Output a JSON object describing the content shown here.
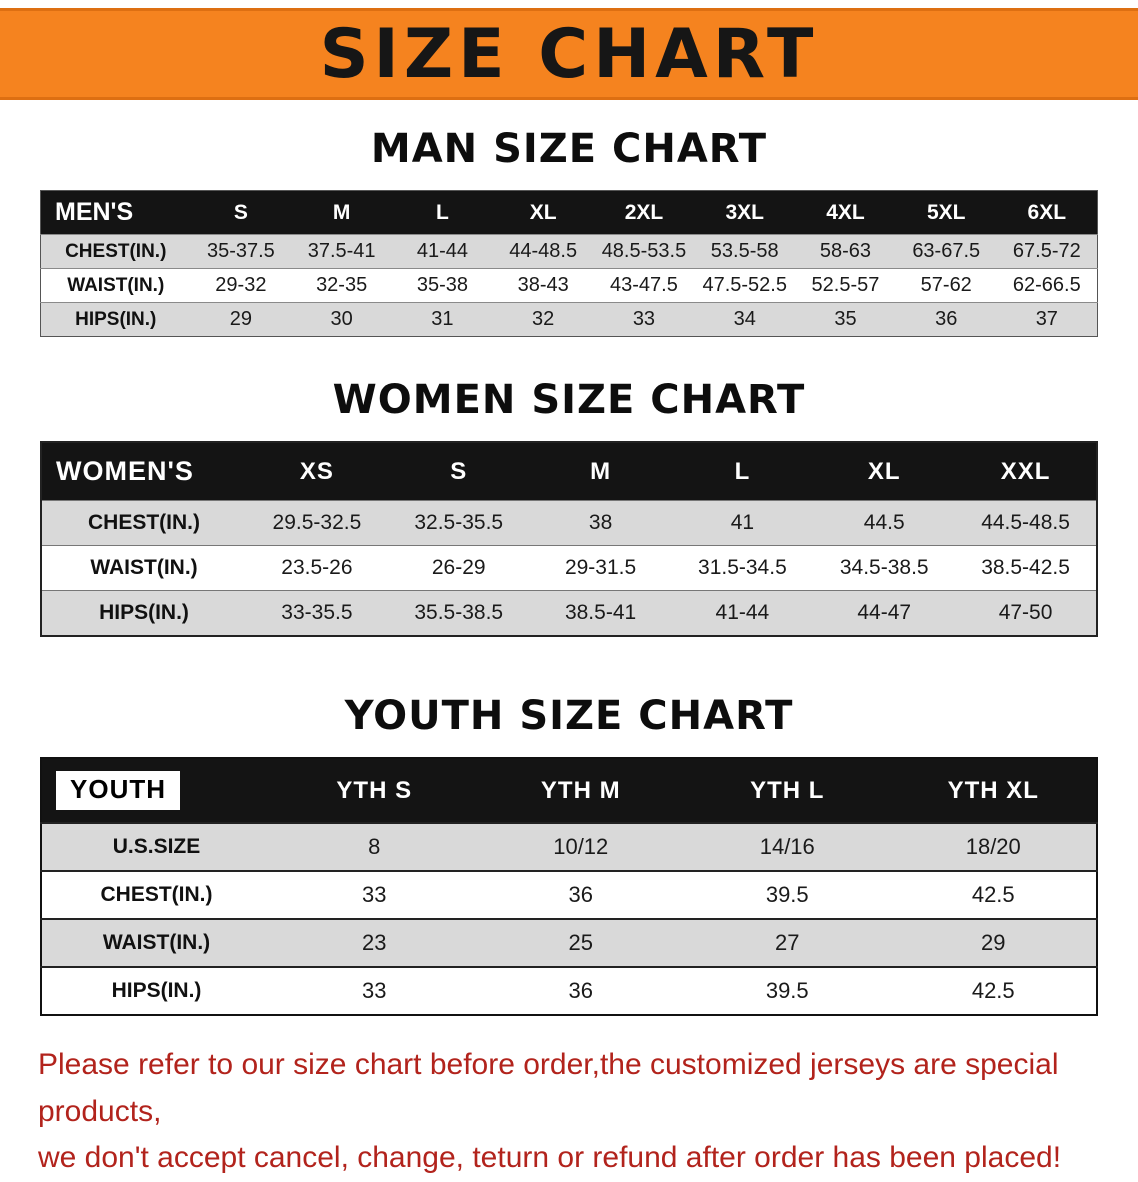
{
  "banner": {
    "title": "SIZE CHART",
    "background_color": "#F5831F",
    "text_color": "#161616"
  },
  "sections": [
    {
      "heading": "MAN SIZE CHART",
      "header_label": "MEN'S",
      "label_style": "plain",
      "columns": [
        "S",
        "M",
        "L",
        "XL",
        "2XL",
        "3XL",
        "4XL",
        "5XL",
        "6XL"
      ],
      "rows": [
        {
          "label": "CHEST(IN.)",
          "values": [
            "35-37.5",
            "37.5-41",
            "41-44",
            "44-48.5",
            "48.5-53.5",
            "53.5-58",
            "58-63",
            "63-67.5",
            "67.5-72"
          ]
        },
        {
          "label": "WAIST(IN.)",
          "values": [
            "29-32",
            "32-35",
            "35-38",
            "38-43",
            "43-47.5",
            "47.5-52.5",
            "52.5-57",
            "57-62",
            "62-66.5"
          ]
        },
        {
          "label": "HIPS(IN.)",
          "values": [
            "29",
            "30",
            "31",
            "32",
            "33",
            "34",
            "35",
            "36",
            "37"
          ]
        }
      ]
    },
    {
      "heading": "WOMEN SIZE CHART",
      "header_label": "WOMEN'S",
      "label_style": "plain",
      "columns": [
        "XS",
        "S",
        "M",
        "L",
        "XL",
        "XXL"
      ],
      "rows": [
        {
          "label": "CHEST(IN.)",
          "values": [
            "29.5-32.5",
            "32.5-35.5",
            "38",
            "41",
            "44.5",
            "44.5-48.5"
          ]
        },
        {
          "label": "WAIST(IN.)",
          "values": [
            "23.5-26",
            "26-29",
            "29-31.5",
            "31.5-34.5",
            "34.5-38.5",
            "38.5-42.5"
          ]
        },
        {
          "label": "HIPS(IN.)",
          "values": [
            "33-35.5",
            "35.5-38.5",
            "38.5-41",
            "41-44",
            "44-47",
            "47-50"
          ]
        }
      ]
    },
    {
      "heading": "YOUTH SIZE CHART",
      "header_label": "YOUTH",
      "label_style": "boxed",
      "columns": [
        "YTH S",
        "YTH M",
        "YTH L",
        "YTH XL"
      ],
      "rows": [
        {
          "label": "U.S.SIZE",
          "values": [
            "8",
            "10/12",
            "14/16",
            "18/20"
          ]
        },
        {
          "label": "CHEST(IN.)",
          "values": [
            "33",
            "36",
            "39.5",
            "42.5"
          ]
        },
        {
          "label": "WAIST(IN.)",
          "values": [
            "23",
            "25",
            "27",
            "29"
          ]
        },
        {
          "label": "HIPS(IN.)",
          "values": [
            "33",
            "36",
            "39.5",
            "42.5"
          ]
        }
      ]
    }
  ],
  "disclaimer": {
    "lines": [
      "Please refer to our size chart before order,the customized jerseys are special products,",
      "we don't accept cancel, change, teturn or refund after order has been placed!"
    ],
    "text_color": "#B2231C"
  },
  "colors": {
    "header_bg": "#141414",
    "row_alt_bg": "#D9D9D9",
    "row_bg": "#FFFFFF",
    "banner_orange": "#F5831F"
  }
}
